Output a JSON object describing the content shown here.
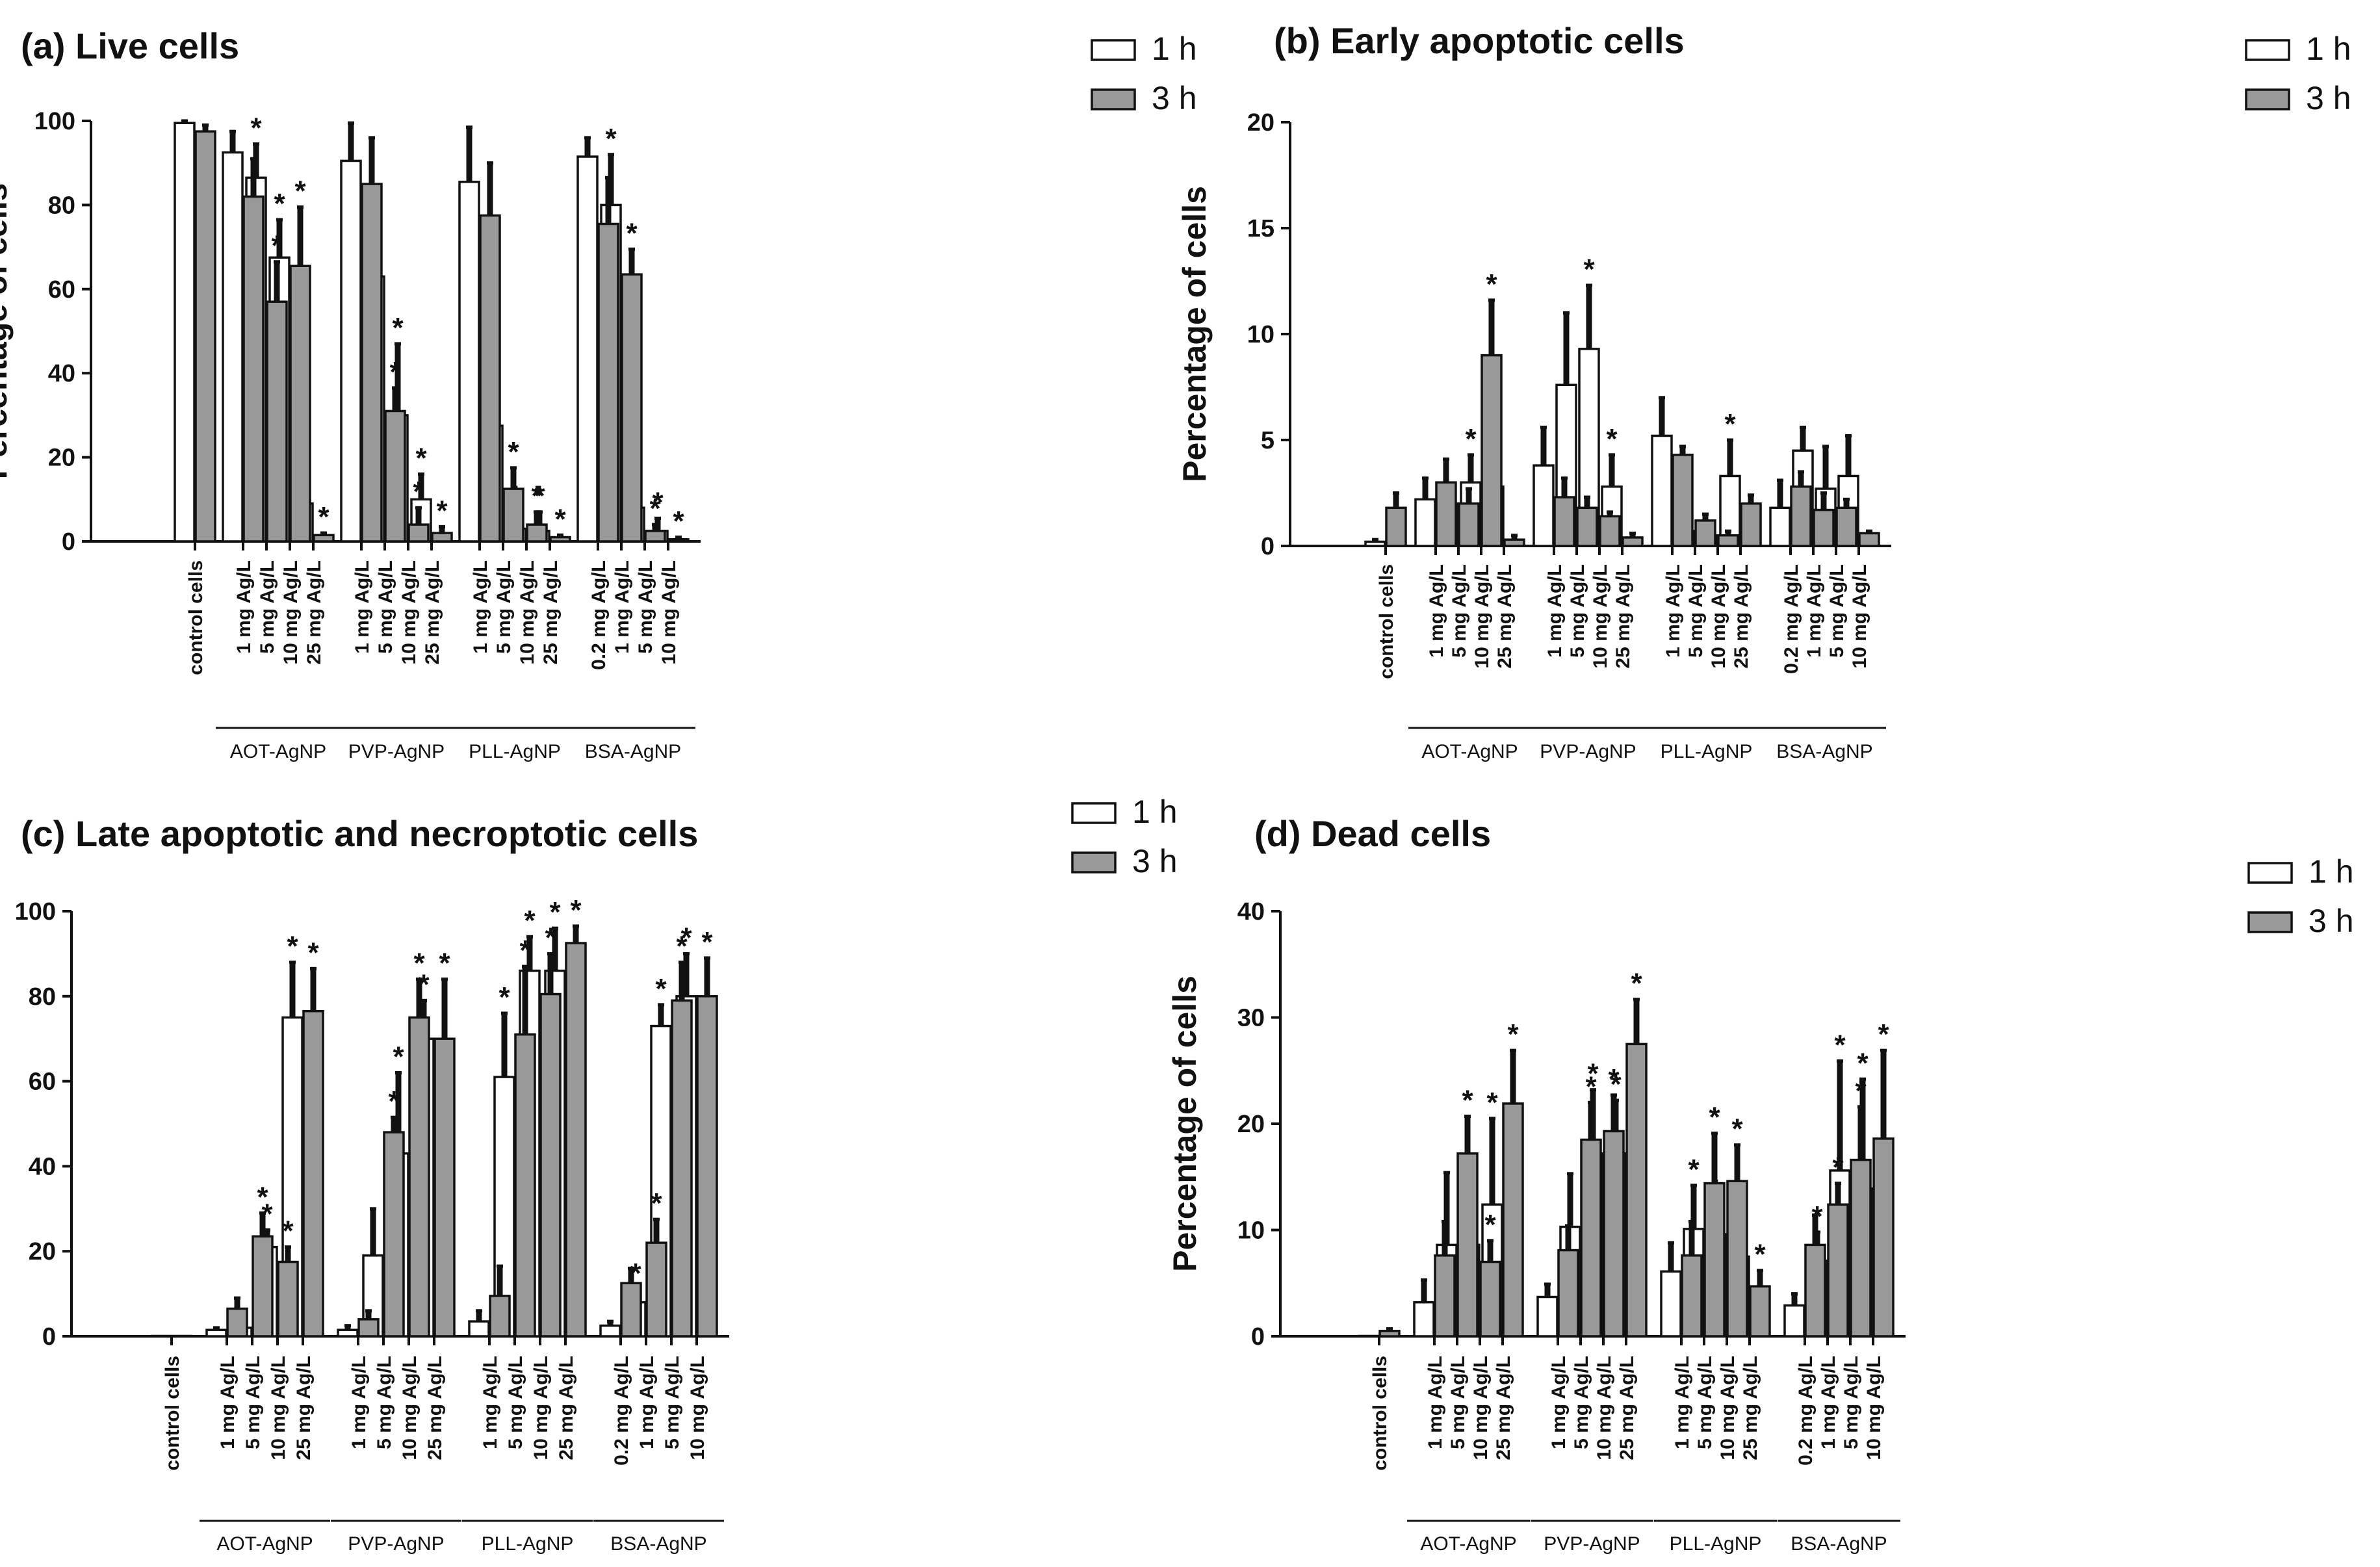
{
  "chart_data": [
    {
      "panel": "a",
      "type": "bar",
      "title": "(a) Live cells",
      "ylabel": "Percentage of cells",
      "ylim": [
        0,
        100
      ],
      "yticks": [
        "0",
        "20",
        "40",
        "60",
        "80",
        "100"
      ],
      "legend": [
        "1 h",
        "3 h"
      ],
      "categories": [
        {
          "group": "",
          "label": "control cells"
        },
        {
          "group": "AOT-AgNP",
          "label": "1 mg Ag/L"
        },
        {
          "group": "AOT-AgNP",
          "label": "5 mg Ag/L"
        },
        {
          "group": "AOT-AgNP",
          "label": "10 mg Ag/L"
        },
        {
          "group": "AOT-AgNP",
          "label": "25 mg Ag/L"
        },
        {
          "group": "PVP-AgNP",
          "label": "1 mg Ag/L"
        },
        {
          "group": "PVP-AgNP",
          "label": "5 mg Ag/L"
        },
        {
          "group": "PVP-AgNP",
          "label": "10 mg Ag/L"
        },
        {
          "group": "PVP-AgNP",
          "label": "25 mg Ag/L"
        },
        {
          "group": "PLL-AgNP",
          "label": "1 mg Ag/L"
        },
        {
          "group": "PLL-AgNP",
          "label": "5 mg Ag/L"
        },
        {
          "group": "PLL-AgNP",
          "label": "10 mg Ag/L"
        },
        {
          "group": "PLL-AgNP",
          "label": "25 mg Ag/L"
        },
        {
          "group": "BSA-AgNP",
          "label": "0.2 mg Ag/L"
        },
        {
          "group": "BSA-AgNP",
          "label": "1 mg Ag/L"
        },
        {
          "group": "BSA-AgNP",
          "label": "5 mg Ag/L"
        },
        {
          "group": "BSA-AgNP",
          "label": "10 mg Ag/L"
        }
      ],
      "groups": [
        "AOT-AgNP",
        "PVP-AgNP",
        "PLL-AgNP",
        "BSA-AgNP"
      ],
      "series": [
        {
          "name": "1 h",
          "values": [
            99.5,
            92.5,
            86.5,
            67.5,
            9,
            90.5,
            63,
            30,
            10,
            85.5,
            27.5,
            3,
            2.5,
            91.5,
            80,
            8,
            2.5
          ],
          "errors": [
            0.5,
            5,
            8,
            9,
            6.5,
            9,
            9,
            17,
            6,
            13,
            15,
            4,
            4.5,
            4.5,
            12,
            8,
            3
          ],
          "significant": [
            false,
            false,
            true,
            true,
            true,
            false,
            true,
            true,
            true,
            false,
            true,
            true,
            true,
            false,
            true,
            true,
            true
          ]
        },
        {
          "name": "3 h",
          "values": [
            97.5,
            82,
            57,
            65.5,
            1.5,
            85,
            31,
            4,
            2,
            77.5,
            12.5,
            4,
            1,
            75.5,
            63.5,
            2.5,
            0.5
          ],
          "errors": [
            1.5,
            9,
            9.5,
            14,
            0.5,
            11,
            5.5,
            4,
            1.5,
            12.5,
            5,
            3,
            0.5,
            11,
            6,
            1.5,
            0.5
          ],
          "significant": [
            false,
            false,
            true,
            true,
            true,
            false,
            true,
            true,
            true,
            false,
            true,
            true,
            true,
            false,
            true,
            true,
            true
          ]
        }
      ]
    },
    {
      "panel": "b",
      "type": "bar",
      "title": "(b) Early apoptotic cells",
      "ylabel": "Percentage of cells",
      "ylim": [
        0,
        20
      ],
      "yticks": [
        "0",
        "5",
        "10",
        "15",
        "20"
      ],
      "legend": [
        "1 h",
        "3 h"
      ],
      "categories": [
        {
          "group": "",
          "label": "control cells"
        },
        {
          "group": "AOT-AgNP",
          "label": "1 mg Ag/L"
        },
        {
          "group": "AOT-AgNP",
          "label": "5 mg Ag/L"
        },
        {
          "group": "AOT-AgNP",
          "label": "10 mg Ag/L"
        },
        {
          "group": "AOT-AgNP",
          "label": "25 mg Ag/L"
        },
        {
          "group": "PVP-AgNP",
          "label": "1 mg Ag/L"
        },
        {
          "group": "PVP-AgNP",
          "label": "5 mg Ag/L"
        },
        {
          "group": "PVP-AgNP",
          "label": "10 mg Ag/L"
        },
        {
          "group": "PVP-AgNP",
          "label": "25 mg Ag/L"
        },
        {
          "group": "PLL-AgNP",
          "label": "1 mg Ag/L"
        },
        {
          "group": "PLL-AgNP",
          "label": "5 mg Ag/L"
        },
        {
          "group": "PLL-AgNP",
          "label": "10 mg Ag/L"
        },
        {
          "group": "PLL-AgNP",
          "label": "25 mg Ag/L"
        },
        {
          "group": "BSA-AgNP",
          "label": "0.2 mg Ag/L"
        },
        {
          "group": "BSA-AgNP",
          "label": "1 mg Ag/L"
        },
        {
          "group": "BSA-AgNP",
          "label": "5 mg Ag/L"
        },
        {
          "group": "BSA-AgNP",
          "label": "10 mg Ag/L"
        }
      ],
      "groups": [
        "AOT-AgNP",
        "PVP-AgNP",
        "PLL-AgNP",
        "BSA-AgNP"
      ],
      "series": [
        {
          "name": "1 h",
          "values": [
            0.2,
            2.2,
            2,
            3,
            2.8,
            3.8,
            7.6,
            9.3,
            2.8,
            5.2,
            0.7,
            0.5,
            3.3,
            1.8,
            4.5,
            2.7,
            3.3
          ],
          "errors": [
            0.1,
            1,
            0.8,
            1.3,
            1.3,
            1.8,
            3.4,
            3,
            1.5,
            1.8,
            0.4,
            0.4,
            1.7,
            1.3,
            1.1,
            2,
            1.9
          ],
          "significant": [
            false,
            false,
            false,
            true,
            true,
            false,
            false,
            true,
            true,
            false,
            false,
            false,
            true,
            false,
            false,
            false,
            false
          ]
        },
        {
          "name": "3 h",
          "values": [
            1.8,
            3,
            2,
            9,
            0.3,
            2.3,
            1.8,
            1.4,
            0.4,
            4.3,
            1.2,
            0.5,
            2,
            2.8,
            1.7,
            1.8,
            0.6
          ],
          "errors": [
            0.7,
            1.1,
            0.7,
            2.6,
            0.2,
            0.9,
            0.5,
            0.2,
            0.2,
            0.4,
            0.3,
            0.2,
            0.4,
            0.7,
            0.8,
            0.4,
            0.1
          ],
          "significant": [
            false,
            false,
            false,
            true,
            false,
            false,
            false,
            false,
            false,
            false,
            false,
            false,
            false,
            false,
            false,
            false,
            false
          ]
        }
      ]
    },
    {
      "panel": "c",
      "type": "bar",
      "title": "(c) Late apoptotic and necroptotic cells",
      "ylabel": "Percentage of cells",
      "ylim": [
        0,
        100
      ],
      "yticks": [
        "0",
        "20",
        "40",
        "60",
        "80",
        "100"
      ],
      "legend": [
        "1 h",
        "3 h"
      ],
      "categories": [
        {
          "group": "",
          "label": "control cells"
        },
        {
          "group": "AOT-AgNP",
          "label": "1 mg Ag/L"
        },
        {
          "group": "AOT-AgNP",
          "label": "5 mg Ag/L"
        },
        {
          "group": "AOT-AgNP",
          "label": "10 mg Ag/L"
        },
        {
          "group": "AOT-AgNP",
          "label": "25 mg Ag/L"
        },
        {
          "group": "PVP-AgNP",
          "label": "1 mg Ag/L"
        },
        {
          "group": "PVP-AgNP",
          "label": "5 mg Ag/L"
        },
        {
          "group": "PVP-AgNP",
          "label": "10 mg Ag/L"
        },
        {
          "group": "PVP-AgNP",
          "label": "25 mg Ag/L"
        },
        {
          "group": "PLL-AgNP",
          "label": "1 mg Ag/L"
        },
        {
          "group": "PLL-AgNP",
          "label": "5 mg Ag/L"
        },
        {
          "group": "PLL-AgNP",
          "label": "10 mg Ag/L"
        },
        {
          "group": "PLL-AgNP",
          "label": "25 mg Ag/L"
        },
        {
          "group": "BSA-AgNP",
          "label": "0.2 mg Ag/L"
        },
        {
          "group": "BSA-AgNP",
          "label": "1 mg Ag/L"
        },
        {
          "group": "BSA-AgNP",
          "label": "5 mg Ag/L"
        },
        {
          "group": "BSA-AgNP",
          "label": "10 mg Ag/L"
        }
      ],
      "groups": [
        "AOT-AgNP",
        "PVP-AgNP",
        "PLL-AgNP",
        "BSA-AgNP"
      ],
      "series": [
        {
          "name": "1 h",
          "values": [
            0,
            1.5,
            2,
            21,
            75,
            1.5,
            19,
            43,
            70,
            3.5,
            61,
            86,
            86,
            2.5,
            8,
            73,
            80
          ],
          "errors": [
            0,
            0.5,
            1.5,
            4,
            13,
            1,
            11,
            19,
            9,
            2.5,
            15,
            8,
            10,
            1,
            3,
            5,
            10
          ],
          "significant": [
            false,
            false,
            false,
            true,
            true,
            false,
            false,
            true,
            true,
            false,
            true,
            true,
            true,
            false,
            true,
            true,
            true
          ]
        },
        {
          "name": "3 h",
          "values": [
            0,
            6.5,
            23.5,
            17.5,
            76.5,
            4,
            48,
            75,
            70,
            9.5,
            71,
            80.5,
            92.5,
            12.5,
            22,
            79,
            80
          ],
          "errors": [
            0,
            2.5,
            5.5,
            3.5,
            10,
            2,
            3.5,
            9,
            14,
            7,
            16,
            9.5,
            4,
            3.5,
            5.5,
            9,
            9
          ],
          "significant": [
            false,
            false,
            true,
            true,
            true,
            false,
            true,
            true,
            true,
            false,
            true,
            true,
            true,
            false,
            true,
            true,
            true
          ]
        }
      ]
    },
    {
      "panel": "d",
      "type": "bar",
      "title": "(d) Dead cells",
      "ylabel": "Percentage of cells",
      "ylim": [
        0,
        40
      ],
      "yticks": [
        "0",
        "10",
        "20",
        "30",
        "40"
      ],
      "legend": [
        "1 h",
        "3 h"
      ],
      "categories": [
        {
          "group": "",
          "label": "control cells"
        },
        {
          "group": "AOT-AgNP",
          "label": "1 mg Ag/L"
        },
        {
          "group": "AOT-AgNP",
          "label": "5 mg Ag/L"
        },
        {
          "group": "AOT-AgNP",
          "label": "10 mg Ag/L"
        },
        {
          "group": "AOT-AgNP",
          "label": "25 mg Ag/L"
        },
        {
          "group": "PVP-AgNP",
          "label": "1 mg Ag/L"
        },
        {
          "group": "PVP-AgNP",
          "label": "5 mg Ag/L"
        },
        {
          "group": "PVP-AgNP",
          "label": "10 mg Ag/L"
        },
        {
          "group": "PVP-AgNP",
          "label": "25 mg Ag/L"
        },
        {
          "group": "PLL-AgNP",
          "label": "1 mg Ag/L"
        },
        {
          "group": "PLL-AgNP",
          "label": "5 mg Ag/L"
        },
        {
          "group": "PLL-AgNP",
          "label": "10 mg Ag/L"
        },
        {
          "group": "PLL-AgNP",
          "label": "25 mg Ag/L"
        },
        {
          "group": "BSA-AgNP",
          "label": "0.2 mg Ag/L"
        },
        {
          "group": "BSA-AgNP",
          "label": "1 mg Ag/L"
        },
        {
          "group": "BSA-AgNP",
          "label": "5 mg Ag/L"
        },
        {
          "group": "BSA-AgNP",
          "label": "10 mg Ag/L"
        }
      ],
      "groups": [
        "AOT-AgNP",
        "PVP-AgNP",
        "PLL-AgNP",
        "BSA-AgNP"
      ],
      "series": [
        {
          "name": "1 h",
          "values": [
            0,
            3.2,
            8.6,
            8.6,
            12.4,
            3.7,
            10.3,
            17.2,
            17.2,
            6.1,
            10.1,
            9.6,
            7.5,
            2.9,
            7.1,
            15.6,
            13.9
          ],
          "errors": [
            0,
            2.1,
            6.8,
            5.7,
            8.1,
            1.2,
            5,
            6,
            5,
            2.7,
            4.1,
            2.7,
            2.7,
            1.1,
            2.7,
            10.3,
            10.3
          ],
          "significant": [
            false,
            false,
            false,
            true,
            true,
            false,
            false,
            true,
            true,
            false,
            true,
            true,
            true,
            false,
            true,
            true,
            true
          ]
        },
        {
          "name": "3 h",
          "values": [
            0.5,
            7.6,
            17.2,
            7,
            21.9,
            8.1,
            18.5,
            19.3,
            27.5,
            7.6,
            14.4,
            14.6,
            4.7,
            8.6,
            12.4,
            16.6,
            18.6
          ],
          "errors": [
            0.2,
            3.2,
            3.5,
            2,
            5,
            2.3,
            3.5,
            3.4,
            4.2,
            3.2,
            4.7,
            3.4,
            1.5,
            2.8,
            2,
            5,
            8.3
          ],
          "significant": [
            false,
            false,
            true,
            true,
            true,
            false,
            true,
            true,
            true,
            false,
            true,
            true,
            true,
            false,
            true,
            true,
            true
          ]
        }
      ]
    }
  ]
}
